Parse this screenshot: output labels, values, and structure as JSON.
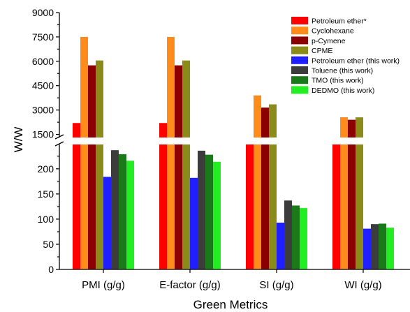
{
  "chart_data": {
    "type": "bar",
    "title": "",
    "xlabel": "Green Metrics",
    "ylabel": "W/W",
    "categories": [
      "PMI (g/g)",
      "E-factor (g/g)",
      "SI (g/g)",
      "WI (g/g)"
    ],
    "y_axis_break": {
      "lower_range": [
        0,
        240
      ],
      "upper_range": [
        750,
        9000
      ]
    },
    "lower_ticks": [
      0,
      50,
      100,
      150,
      200
    ],
    "upper_ticks": [
      1500,
      3000,
      4500,
      6000,
      7500,
      9000
    ],
    "legend_position": "top-right",
    "grid": false,
    "series": [
      {
        "name": "Petroleum ether*",
        "color": "#ff0000",
        "values": [
          2200,
          2200,
          1000,
          1000
        ]
      },
      {
        "name": "Cyclohexane",
        "color": "#ff8c1a",
        "values": [
          7500,
          7500,
          3900,
          3300
        ]
      },
      {
        "name": "p-Cymene",
        "color": "#8b0000",
        "values": [
          5750,
          5750,
          3150,
          2400
        ]
      },
      {
        "name": "CPME",
        "color": "#8b8b1a",
        "values": [
          6050,
          6050,
          3350,
          2550
        ]
      },
      {
        "name": "Petroleum ether (this work)",
        "color": "#1f1fff",
        "values": [
          184,
          182,
          93,
          81
        ]
      },
      {
        "name": "Toluene (this work)",
        "color": "#3c3c3c",
        "values": [
          237,
          236,
          137,
          90
        ]
      },
      {
        "name": "TMO (this work)",
        "color": "#1a7a1a",
        "values": [
          229,
          228,
          127,
          91
        ]
      },
      {
        "name": "DEDMO (this work)",
        "color": "#22ee22",
        "values": [
          216,
          214,
          122,
          83
        ]
      }
    ]
  }
}
